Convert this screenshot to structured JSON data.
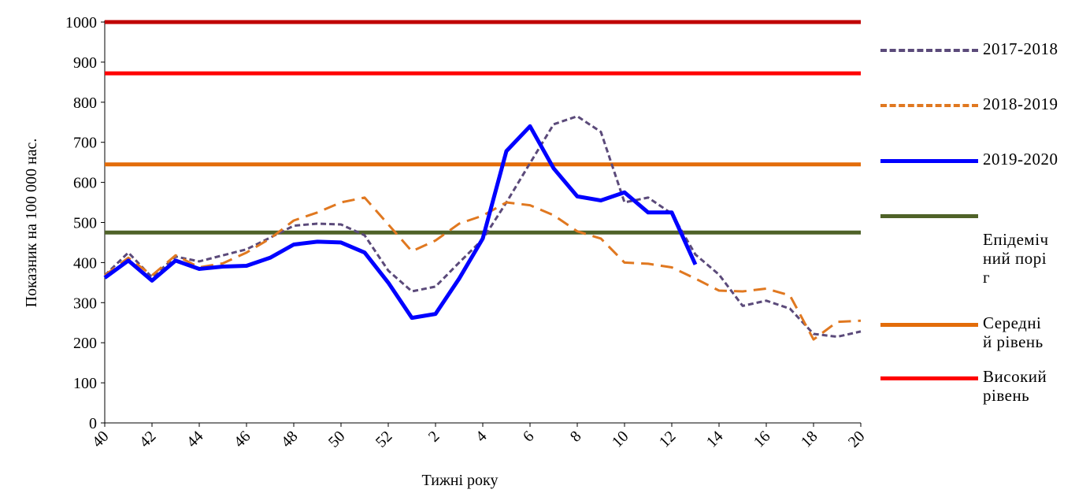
{
  "chart_data": {
    "type": "line",
    "title": "",
    "xlabel": "Тижні року",
    "ylabel": "Показник на 100 000 нас.",
    "ylim": [
      0,
      1000
    ],
    "yticks": [
      "0",
      "100",
      "200",
      "300",
      "400",
      "500",
      "600",
      "700",
      "800",
      "900",
      "1000"
    ],
    "x": [
      "40",
      "41",
      "42",
      "43",
      "44",
      "45",
      "46",
      "47",
      "48",
      "49",
      "50",
      "51",
      "52",
      "1",
      "2",
      "3",
      "4",
      "5",
      "6",
      "7",
      "8",
      "9",
      "10",
      "11",
      "12",
      "13",
      "14",
      "15",
      "16",
      "17",
      "18",
      "19",
      "20"
    ],
    "xtick_labels": [
      "40",
      "42",
      "44",
      "46",
      "48",
      "50",
      "52",
      "2",
      "4",
      "6",
      "8",
      "10",
      "12",
      "14",
      "16",
      "18",
      "20"
    ],
    "grid": false,
    "legend_position": "right",
    "series": [
      {
        "name": "2017-2018",
        "style": "dashed-short",
        "color": "#5B4A7A",
        "values": [
          368,
          425,
          363,
          415,
          403,
          418,
          433,
          462,
          492,
          497,
          495,
          468,
          380,
          328,
          340,
          400,
          458,
          550,
          648,
          745,
          765,
          726,
          550,
          562,
          522,
          420,
          370,
          292,
          305,
          285,
          222,
          215,
          228
        ]
      },
      {
        "name": "2018-2019",
        "style": "dashed-long",
        "color": "#E07820",
        "values": [
          368,
          412,
          368,
          418,
          388,
          398,
          425,
          460,
          505,
          525,
          550,
          562,
          495,
          428,
          455,
          497,
          517,
          550,
          543,
          518,
          478,
          460,
          400,
          397,
          388,
          360,
          330,
          328,
          335,
          318,
          208,
          252,
          255
        ]
      },
      {
        "name": "2019-2020",
        "style": "solid",
        "color": "#0000FF",
        "values": [
          362,
          405,
          355,
          405,
          384,
          390,
          392,
          412,
          445,
          452,
          450,
          425,
          350,
          262,
          272,
          360,
          460,
          678,
          740,
          635,
          565,
          555,
          575,
          525,
          525,
          395,
          null,
          null,
          null,
          null,
          null,
          null,
          null
        ]
      },
      {
        "name": "Епідемічний поріг",
        "style": "solid",
        "color": "#4F6228",
        "constant": 475
      },
      {
        "name": "Середній рівень",
        "style": "solid",
        "color": "#E36C09",
        "constant": 645
      },
      {
        "name": "Високий рівень",
        "style": "solid",
        "color": "#FF0000",
        "constant": 872
      }
    ],
    "top_line": {
      "value": 1000,
      "color": "#C00000"
    },
    "legend": {
      "s2017": "2017-2018",
      "s2018": "2018-2019",
      "s2019": "2019-2020",
      "threshold": "Епідемічний поріг",
      "medium": "Середній рівень",
      "high": "Високий рівень"
    }
  }
}
